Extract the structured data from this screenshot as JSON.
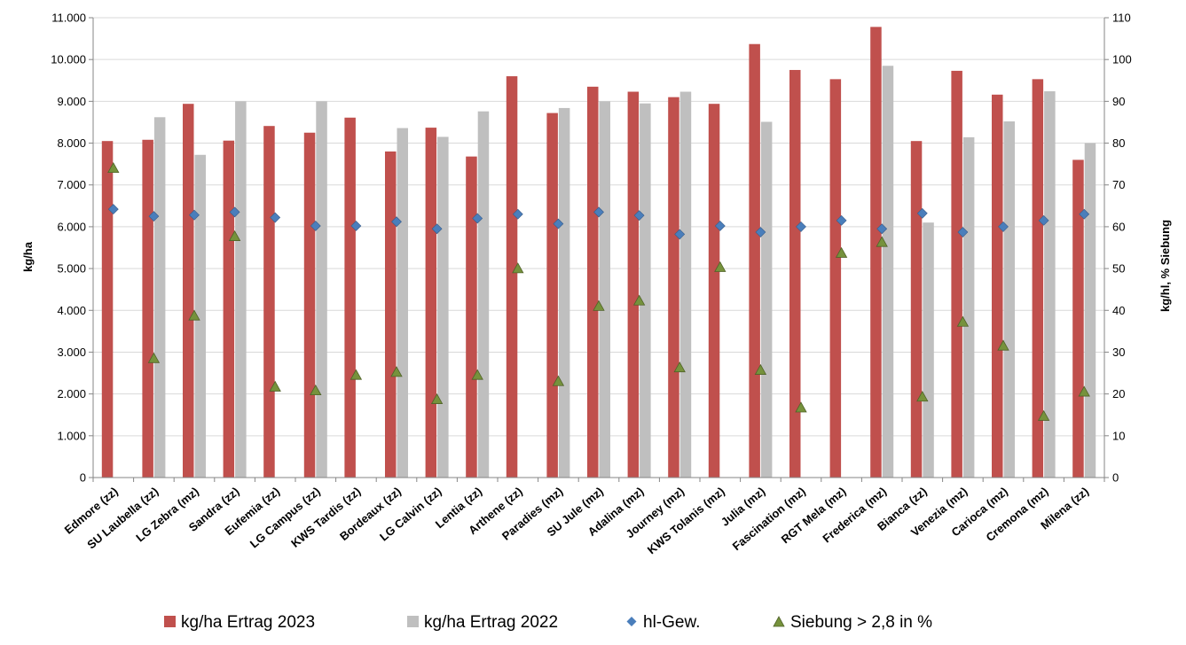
{
  "chart_data": {
    "type": "bar",
    "categories": [
      "Edmore (zz)",
      "SU Laubella (zz)",
      "LG Zebra (mz)",
      "Sandra (zz)",
      "Eufemia (zz)",
      "LG Campus (zz)",
      "KWS Tardis (zz)",
      "Bordeaux (zz)",
      "LG Calvin (zz)",
      "Lentia (zz)",
      "Arthene (zz)",
      "Paradies (mz)",
      "SU Jule (mz)",
      "Adalina (mz)",
      "Journey (mz)",
      "KWS Tolanis (mz)",
      "Julia (mz)",
      "Fascination (mz)",
      "RGT Mela (mz)",
      "Frederica (mz)",
      "Bianca (zz)",
      "Venezia (mz)",
      "Carioca (mz)",
      "Cremona (mz)",
      "Milena (zz)"
    ],
    "series": [
      {
        "name": "kg/ha Ertrag 2023",
        "kind": "bar",
        "axis": "left",
        "color": "#c0504d",
        "values": [
          8050,
          8080,
          8940,
          8060,
          8410,
          8250,
          8610,
          7800,
          8370,
          7680,
          9600,
          8720,
          9350,
          9230,
          9100,
          8940,
          10370,
          9750,
          9530,
          10780,
          8050,
          9730,
          9160,
          9530,
          7600
        ]
      },
      {
        "name": "kg/ha Ertrag 2022",
        "kind": "bar",
        "axis": "left",
        "color": "#bfbfbf",
        "values": [
          null,
          8620,
          7720,
          9000,
          null,
          9000,
          null,
          8360,
          8150,
          8760,
          null,
          8840,
          9000,
          8950,
          9230,
          null,
          8510,
          null,
          null,
          9850,
          6100,
          8140,
          8520,
          9240,
          8000
        ]
      },
      {
        "name": "hl-Gew.",
        "kind": "scatter-diamond",
        "axis": "right",
        "color": "#4a7ebb",
        "values": [
          64.2,
          62.5,
          62.8,
          63.5,
          62.2,
          60.2,
          60.2,
          61.2,
          59.5,
          62.0,
          63.0,
          60.7,
          63.5,
          62.7,
          58.2,
          60.2,
          58.7,
          60.0,
          61.5,
          59.5,
          63.2,
          58.7,
          60.0,
          61.5,
          63.0
        ]
      },
      {
        "name": "Siebung > 2,8 in %",
        "kind": "scatter-triangle",
        "axis": "right",
        "color": "#4f6228",
        "values": [
          74.0,
          28.5,
          38.7,
          57.7,
          21.7,
          20.8,
          24.5,
          25.2,
          18.7,
          24.5,
          50.0,
          23.0,
          41.0,
          42.3,
          26.3,
          50.3,
          25.7,
          16.7,
          53.7,
          56.3,
          19.3,
          37.2,
          31.5,
          14.7,
          20.5
        ]
      }
    ],
    "ylabel": "kg/ha",
    "y2label": "kg/hl, % Siebung",
    "ylim": [
      0,
      11000
    ],
    "y2lim": [
      0,
      110
    ],
    "yticks": [
      "0",
      "1.000",
      "2.000",
      "3.000",
      "4.000",
      "5.000",
      "6.000",
      "7.000",
      "8.000",
      "9.000",
      "10.000",
      "11.000"
    ],
    "y2ticks": [
      "0",
      "10",
      "20",
      "30",
      "40",
      "50",
      "60",
      "70",
      "80",
      "90",
      "100",
      "110"
    ],
    "grid": true,
    "legend_position": "bottom"
  }
}
